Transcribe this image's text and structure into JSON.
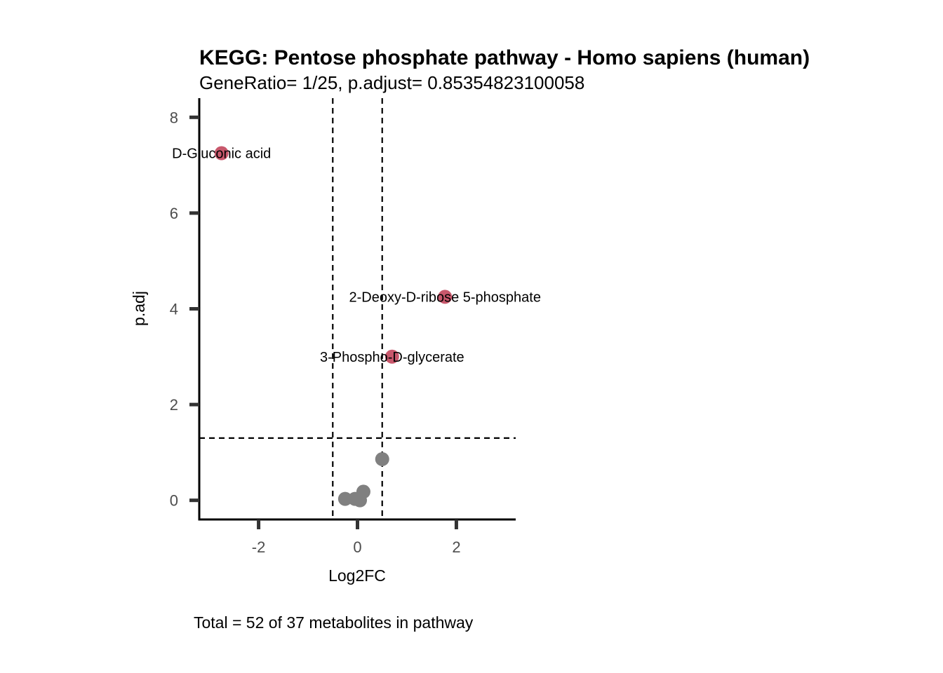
{
  "chart_data": {
    "type": "scatter",
    "title": "KEGG: Pentose phosphate pathway - Homo sapiens (human)",
    "subtitle": "GeneRatio= 1/25, p.adjust= 0.85354823100058",
    "xlabel": "Log2FC",
    "ylabel": "p.adj",
    "caption": "Total = 52 of 37 metabolites in pathway",
    "xlim": [
      -3.2,
      3.2
    ],
    "ylim": [
      -0.4,
      8.4
    ],
    "xticks": [
      -2,
      0,
      2
    ],
    "xtick_labels": [
      "-2",
      "0",
      "2"
    ],
    "yticks": [
      0,
      2,
      4,
      6,
      8
    ],
    "ytick_labels": [
      "0",
      "2",
      "4",
      "6",
      "8"
    ],
    "grid": false,
    "thresholds": {
      "x": [
        -0.5,
        0.5
      ],
      "y": 1.3
    },
    "colors": {
      "significant": "#c8586c",
      "nonsignificant": "#808080",
      "line": "#000000",
      "axis": "#000000",
      "tick": "#333333"
    },
    "points": [
      {
        "x": -2.75,
        "y": 7.25,
        "label": "D-Gluconic acid",
        "significant": true
      },
      {
        "x": 1.77,
        "y": 4.25,
        "label": "2-Deoxy-D-ribose 5-phosphate",
        "significant": true
      },
      {
        "x": 0.7,
        "y": 3.0,
        "label": "3-Phospho-D-glycerate",
        "significant": true
      },
      {
        "x": 0.5,
        "y": 0.86,
        "label": "",
        "significant": false
      },
      {
        "x": 0.12,
        "y": 0.18,
        "label": "",
        "significant": false
      },
      {
        "x": -0.25,
        "y": 0.03,
        "label": "",
        "significant": false
      },
      {
        "x": -0.05,
        "y": 0.03,
        "label": "",
        "significant": false
      },
      {
        "x": 0.05,
        "y": 0.0,
        "label": "",
        "significant": false
      }
    ]
  }
}
